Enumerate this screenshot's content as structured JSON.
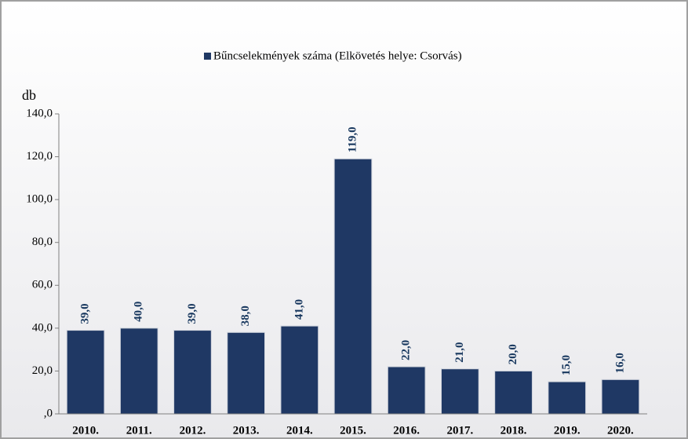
{
  "chart_data": {
    "type": "bar",
    "legend_label": "Bűncselekmények száma (Elkövetés helye: Csorvás)",
    "y_axis_label": "db",
    "categories": [
      "2010.",
      "2011.",
      "2012.",
      "2013.",
      "2014.",
      "2015.",
      "2016.",
      "2017.",
      "2018.",
      "2019.",
      "2020."
    ],
    "values": [
      39,
      40,
      39,
      38,
      41,
      119,
      22,
      21,
      20,
      15,
      16
    ],
    "value_labels": [
      "39,0",
      "40,0",
      "39,0",
      "38,0",
      "41,0",
      "119,0",
      "22,0",
      "21,0",
      "20,0",
      "15,0",
      "16,0"
    ],
    "color": "#1f3864",
    "ylim": [
      0,
      140
    ],
    "yticks": [
      {
        "value": 0,
        "label": ",0"
      },
      {
        "value": 20,
        "label": "20,0"
      },
      {
        "value": 40,
        "label": "40,0"
      },
      {
        "value": 60,
        "label": "60,0"
      },
      {
        "value": 80,
        "label": "80,0"
      },
      {
        "value": 100,
        "label": "100,0"
      },
      {
        "value": 120,
        "label": "120,0"
      },
      {
        "value": 140,
        "label": "140,0"
      }
    ]
  }
}
